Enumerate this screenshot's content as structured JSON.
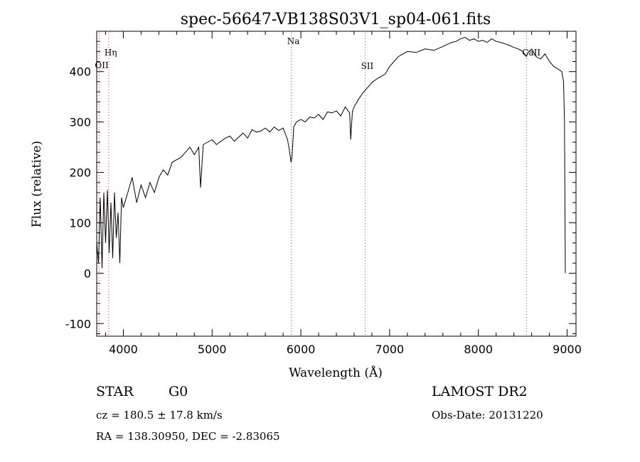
{
  "chart_data": {
    "type": "line",
    "title": "spec-56647-VB138S03V1_sp04-061.fits",
    "xlabel": "Wavelength (Å)",
    "ylabel": "Flux (relative)",
    "xlim": [
      3700,
      9100
    ],
    "ylim": [
      -125,
      480
    ],
    "x_ticks": [
      4000,
      5000,
      6000,
      7000,
      8000,
      9000
    ],
    "y_ticks": [
      -100,
      0,
      100,
      200,
      300,
      400
    ],
    "grid": false,
    "line_color": "#000000",
    "line_markers": [
      {
        "label": "OII",
        "x": 3727,
        "color": "#cc3333"
      },
      {
        "label": "Hη",
        "x": 3835,
        "color": "#cc3333"
      },
      {
        "label": "Na",
        "x": 5893,
        "color": "#cc3333"
      },
      {
        "label": "SII",
        "x": 6725,
        "color": "#cc3333"
      },
      {
        "label": "CaII",
        "x": 8542,
        "color": "#cc3333"
      }
    ],
    "series": [
      {
        "x": [
          3700,
          3720,
          3740,
          3760,
          3780,
          3800,
          3820,
          3840,
          3860,
          3880,
          3900,
          3920,
          3940,
          3960,
          3980,
          4000,
          4050,
          4100,
          4150,
          4200,
          4250,
          4300,
          4350,
          4400,
          4450,
          4500,
          4550,
          4600,
          4650,
          4700,
          4750,
          4800,
          4850,
          4870,
          4900,
          4950,
          5000,
          5050,
          5100,
          5150,
          5200,
          5250,
          5300,
          5350,
          5400,
          5450,
          5500,
          5550,
          5600,
          5650,
          5700,
          5750,
          5800,
          5850,
          5870,
          5890,
          5900,
          5920,
          5950,
          6000,
          6050,
          6100,
          6150,
          6200,
          6250,
          6300,
          6350,
          6400,
          6450,
          6500,
          6550,
          6562,
          6580,
          6600,
          6650,
          6700,
          6750,
          6800,
          6850,
          6900,
          6950,
          7000,
          7050,
          7100,
          7150,
          7200,
          7300,
          7400,
          7500,
          7600,
          7700,
          7750,
          7800,
          7850,
          7900,
          7950,
          8000,
          8050,
          8100,
          8150,
          8200,
          8250,
          8300,
          8350,
          8400,
          8450,
          8500,
          8540,
          8560,
          8600,
          8650,
          8700,
          8750,
          8800,
          8850,
          8900,
          8940,
          8960,
          8970,
          8980
        ],
        "y": [
          60,
          20,
          150,
          10,
          160,
          60,
          165,
          40,
          140,
          30,
          160,
          70,
          120,
          20,
          150,
          130,
          160,
          190,
          140,
          175,
          150,
          180,
          160,
          190,
          205,
          195,
          220,
          225,
          230,
          240,
          250,
          235,
          250,
          170,
          255,
          260,
          265,
          255,
          262,
          268,
          272,
          262,
          270,
          278,
          268,
          285,
          280,
          282,
          288,
          280,
          290,
          283,
          288,
          265,
          245,
          220,
          230,
          290,
          300,
          305,
          300,
          310,
          308,
          315,
          305,
          320,
          318,
          322,
          312,
          330,
          318,
          265,
          320,
          330,
          345,
          358,
          368,
          378,
          385,
          390,
          395,
          410,
          420,
          430,
          435,
          440,
          438,
          445,
          442,
          450,
          458,
          460,
          465,
          468,
          462,
          465,
          460,
          462,
          458,
          465,
          460,
          458,
          455,
          452,
          448,
          445,
          440,
          430,
          438,
          445,
          430,
          425,
          435,
          420,
          410,
          405,
          400,
          380,
          300,
          0
        ]
      }
    ]
  },
  "footer": {
    "object_type": "STAR",
    "subclass": "G0",
    "survey": "LAMOST DR2",
    "redshift": "cz = 180.5 ± 17.8 km/s",
    "obs_date": "Obs-Date: 20131220",
    "coords": "RA = 138.30950, DEC =  -2.83065"
  }
}
